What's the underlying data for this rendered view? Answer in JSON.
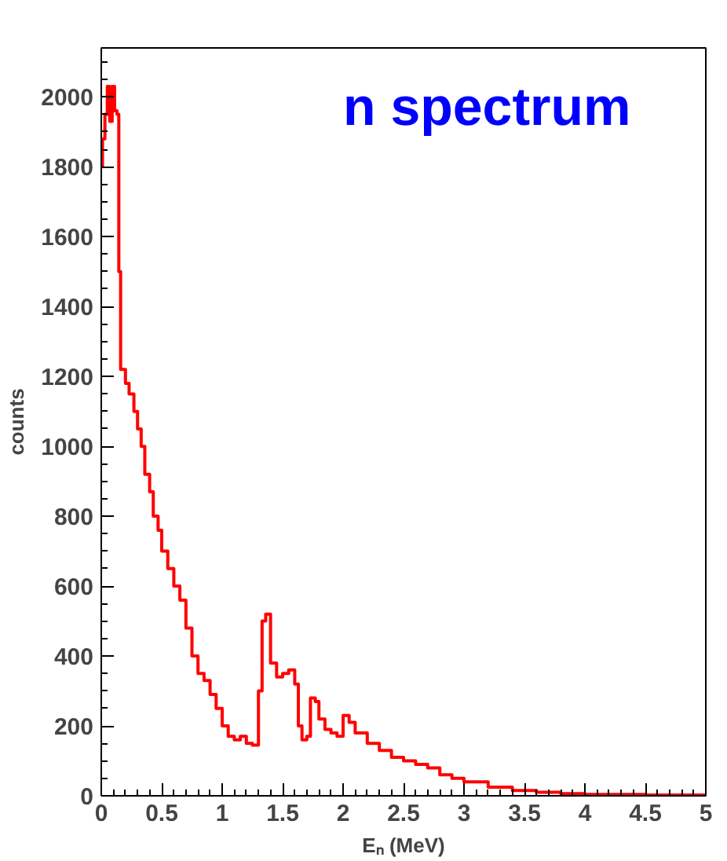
{
  "chart_data": {
    "type": "step",
    "title": "n spectrum",
    "xlabel": "Eₙ (MeV)",
    "ylabel": "counts",
    "xlim": [
      0,
      5
    ],
    "ylim": [
      0,
      2140
    ],
    "xticks": [
      0,
      0.5,
      1,
      1.5,
      2,
      2.5,
      3,
      3.5,
      4,
      4.5,
      5
    ],
    "yticks": [
      0,
      200,
      400,
      600,
      800,
      1000,
      1200,
      1400,
      1600,
      1800,
      2000
    ],
    "grid": false,
    "series": [
      {
        "color": "#ff0000",
        "x": [
          0.0,
          0.01,
          0.03,
          0.05,
          0.07,
          0.09,
          0.11,
          0.13,
          0.145,
          0.16,
          0.2,
          0.23,
          0.27,
          0.3,
          0.33,
          0.36,
          0.4,
          0.43,
          0.47,
          0.5,
          0.55,
          0.6,
          0.65,
          0.7,
          0.75,
          0.8,
          0.85,
          0.9,
          0.95,
          1.0,
          1.05,
          1.1,
          1.15,
          1.2,
          1.25,
          1.3,
          1.33,
          1.36,
          1.4,
          1.45,
          1.5,
          1.55,
          1.6,
          1.63,
          1.66,
          1.7,
          1.73,
          1.77,
          1.8,
          1.85,
          1.9,
          1.95,
          2.0,
          2.05,
          2.1,
          2.2,
          2.3,
          2.4,
          2.5,
          2.6,
          2.7,
          2.8,
          2.9,
          3.0,
          3.2,
          3.4,
          3.6,
          3.8,
          4.0,
          4.5,
          5.0
        ],
        "values": [
          1800,
          1880,
          1950,
          2030,
          1930,
          2030,
          1960,
          1950,
          1500,
          1220,
          1180,
          1150,
          1100,
          1050,
          1000,
          920,
          870,
          800,
          760,
          700,
          650,
          600,
          560,
          480,
          400,
          350,
          330,
          290,
          250,
          200,
          170,
          160,
          170,
          150,
          145,
          300,
          500,
          520,
          380,
          340,
          350,
          360,
          320,
          200,
          160,
          170,
          280,
          270,
          220,
          190,
          180,
          170,
          230,
          210,
          180,
          150,
          130,
          110,
          100,
          90,
          80,
          60,
          50,
          40,
          25,
          15,
          10,
          6,
          4,
          2,
          0
        ]
      }
    ]
  }
}
